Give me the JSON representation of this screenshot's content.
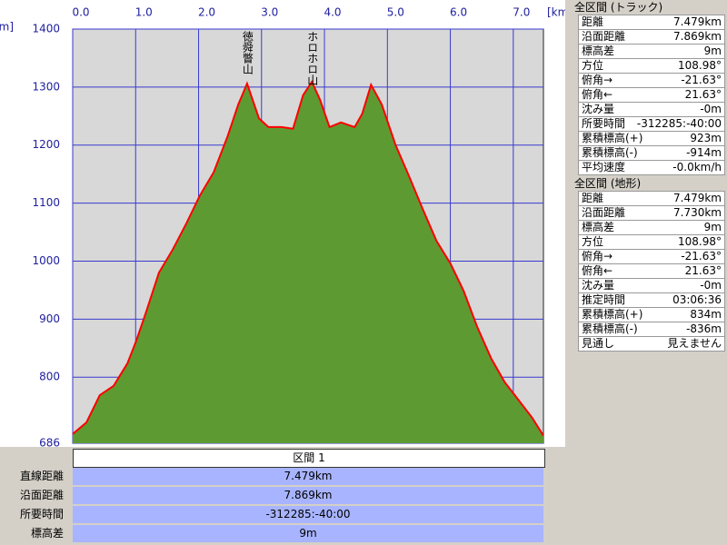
{
  "chart_data": {
    "type": "area",
    "x_unit": "[km]",
    "y_unit": "[m]",
    "x": [
      0,
      0.22,
      0.43,
      0.65,
      0.87,
      1.01,
      1.16,
      1.37,
      1.59,
      1.81,
      2.02,
      2.24,
      2.46,
      2.63,
      2.77,
      2.96,
      3.11,
      3.32,
      3.5,
      3.66,
      3.8,
      3.93,
      4.08,
      4.26,
      4.48,
      4.6,
      4.74,
      4.91,
      5.13,
      5.35,
      5.56,
      5.78,
      6.0,
      6.21,
      6.43,
      6.65,
      6.86,
      7.08,
      7.3,
      7.479
    ],
    "values": [
      702,
      722,
      769,
      785,
      824,
      863,
      910,
      980,
      1020,
      1066,
      1113,
      1153,
      1215,
      1270,
      1306,
      1246,
      1231,
      1231,
      1228,
      1286,
      1309,
      1278,
      1231,
      1239,
      1231,
      1254,
      1304,
      1270,
      1200,
      1145,
      1090,
      1035,
      996,
      949,
      886,
      832,
      792,
      761,
      730,
      699
    ],
    "color": "#ff0000",
    "fill": "#5e9a32",
    "xlim": [
      0,
      7.479
    ],
    "ylim": [
      686,
      1400
    ],
    "xticks": [
      {
        "value": 0,
        "label": "0.0"
      },
      {
        "value": 1,
        "label": "1.0"
      },
      {
        "value": 2,
        "label": "2.0"
      },
      {
        "value": 3,
        "label": "3.0"
      },
      {
        "value": 4,
        "label": "4.0"
      },
      {
        "value": 5,
        "label": "5.0"
      },
      {
        "value": 6,
        "label": "6.0"
      },
      {
        "value": 7,
        "label": "7.0"
      }
    ],
    "yticks": [
      686,
      800,
      900,
      1000,
      1100,
      1200,
      1300,
      1400
    ],
    "grid": true,
    "annotations": [
      {
        "x": 2.77,
        "text": "徳舜瞥山"
      },
      {
        "x": 3.8,
        "text": "ホロホロ山"
      }
    ]
  },
  "section": {
    "header": "区間 1",
    "rows": [
      [
        "直線距離",
        "7.479km"
      ],
      [
        "沿面距離",
        "7.869km"
      ],
      [
        "所要時間",
        "-312285:-40:00"
      ],
      [
        "標高差",
        "9m"
      ]
    ]
  },
  "summary_track": {
    "title": "全区間 (トラック)",
    "rows": [
      [
        "距離",
        "7.479km"
      ],
      [
        "沿面距離",
        "7.869km"
      ],
      [
        "標高差",
        "9m"
      ],
      [
        "方位",
        "108.98°"
      ],
      [
        "俯角→",
        "-21.63°"
      ],
      [
        "俯角←",
        "21.63°"
      ],
      [
        "沈み量",
        "-0m"
      ],
      [
        "所要時間",
        "-312285:-40:00"
      ],
      [
        "累積標高(+)",
        "923m"
      ],
      [
        "累積標高(-)",
        "-914m"
      ],
      [
        "平均速度",
        "-0.0km/h"
      ]
    ]
  },
  "summary_terrain": {
    "title": "全区間 (地形)",
    "rows": [
      [
        "距離",
        "7.479km"
      ],
      [
        "沿面距離",
        "7.730km"
      ],
      [
        "標高差",
        "9m"
      ],
      [
        "方位",
        "108.98°"
      ],
      [
        "俯角→",
        "-21.63°"
      ],
      [
        "俯角←",
        "21.63°"
      ],
      [
        "沈み量",
        "-0m"
      ],
      [
        "推定時間",
        "03:06:36"
      ],
      [
        "累積標高(+)",
        "834m"
      ],
      [
        "累積標高(-)",
        "-836m"
      ],
      [
        "見通し",
        "見えません"
      ]
    ]
  }
}
